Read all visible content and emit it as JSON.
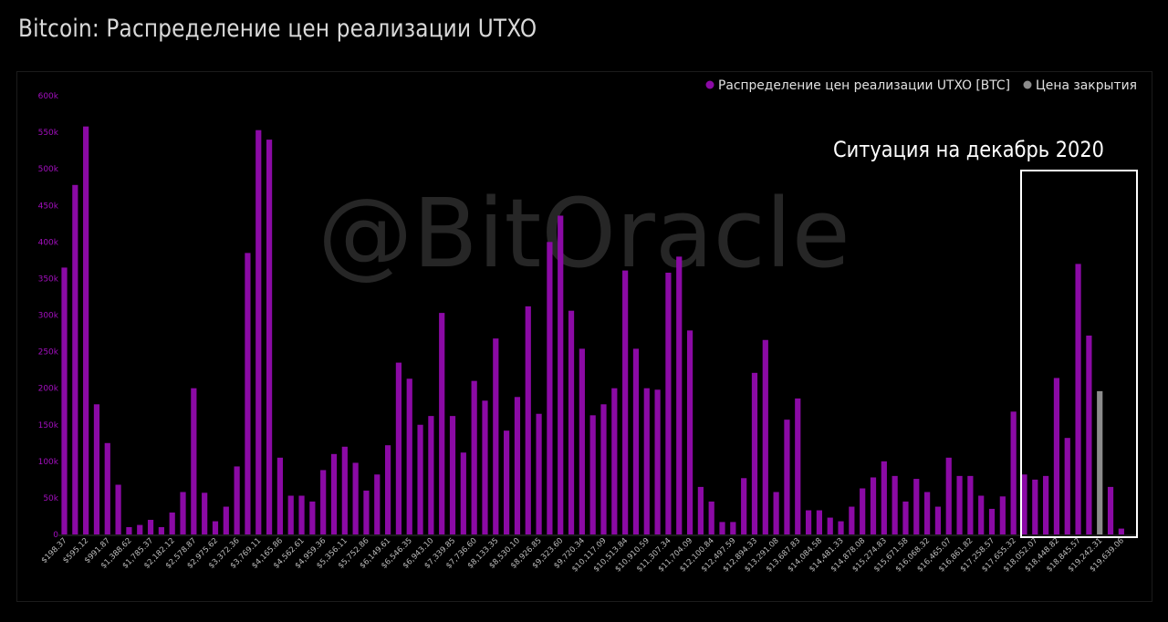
{
  "header": {
    "title": "Bitcoin: Распределение цен реализации UTXO"
  },
  "watermark": "@BitOracle",
  "legend": {
    "placement": "top-right",
    "items": [
      {
        "label": "Распределение цен реализации UTXO [BTC]",
        "color": "#8b0aa5"
      },
      {
        "label": "Цена закрытия",
        "color": "#8c8c8c"
      }
    ]
  },
  "annotation": {
    "text": "Ситуация на декабрь 2020"
  },
  "colors": {
    "bar": "#8b0aa5",
    "highlight": "#8c8c8c",
    "ytick": "#a30fbf",
    "xtick": "#bdbdbd",
    "box": "#ffffff"
  },
  "chart_data": {
    "type": "bar",
    "title": "Bitcoin: Распределение цен реализации UTXO",
    "ylim": [
      0,
      600000
    ],
    "yticks": [
      "0",
      "50k",
      "100k",
      "150k",
      "200k",
      "250k",
      "300k",
      "350k",
      "400k",
      "450k",
      "500k",
      "550k",
      "600k"
    ],
    "grid": false,
    "xtick_labels": [
      "$198.37",
      "$595.12",
      "$991.87",
      "$1,388.62",
      "$1,785.37",
      "$2,182.12",
      "$2,578.87",
      "$2,975.62",
      "$3,372.36",
      "$3,769.11",
      "$4,165.86",
      "$4,562.61",
      "$4,959.36",
      "$5,356.11",
      "$5,752.86",
      "$6,149.61",
      "$6,546.35",
      "$6,943.10",
      "$7,339.85",
      "$7,736.60",
      "$8,133.35",
      "$8,530.10",
      "$8,926.85",
      "$9,323.60",
      "$9,720.34",
      "$10,117.09",
      "$10,513.84",
      "$10,910.59",
      "$11,307.34",
      "$11,704.09",
      "$12,100.84",
      "$12,497.59",
      "$12,894.33",
      "$13,291.08",
      "$13,687.83",
      "$14,084.58",
      "$14,481.33",
      "$14,878.08",
      "$15,274.83",
      "$15,671.58",
      "$16,068.32",
      "$16,465.07",
      "$16,861.82",
      "$17,258.57",
      "$17,655.32",
      "$18,052.07",
      "$18,448.82",
      "$18,845.57",
      "$19,242.31",
      "$19,639.06"
    ],
    "series": [
      {
        "name": "Распределение цен реализации UTXO [BTC]",
        "values": [
          365000,
          478000,
          558000,
          178000,
          125000,
          68000,
          10000,
          13000,
          20000,
          10000,
          30000,
          58000,
          200000,
          57000,
          18000,
          38000,
          93000,
          385000,
          553000,
          540000,
          105000,
          53000,
          53000,
          45000,
          88000,
          110000,
          120000,
          98000,
          60000,
          82000,
          122000,
          235000,
          213000,
          150000,
          162000,
          303000,
          162000,
          112000,
          210000,
          183000,
          268000,
          142000,
          188000,
          312000,
          165000,
          400000,
          436000,
          306000,
          254000,
          163000,
          178000,
          200000,
          361000,
          254000,
          200000,
          198000,
          358000,
          380000,
          279000,
          65000,
          45000,
          17000,
          17000,
          77000,
          221000,
          266000,
          58000,
          157000,
          186000,
          33000,
          33000,
          23000,
          18000,
          38000,
          63000,
          78000,
          100000,
          80000,
          45000,
          76000,
          58000,
          38000,
          105000,
          80000,
          80000,
          53000,
          35000,
          52000,
          168000,
          82000,
          75000,
          80000,
          214000,
          132000,
          370000,
          272000,
          0,
          65000,
          8000
        ]
      },
      {
        "name": "Цена закрытия",
        "values": [
          0,
          0,
          0,
          0,
          0,
          0,
          0,
          0,
          0,
          0,
          0,
          0,
          0,
          0,
          0,
          0,
          0,
          0,
          0,
          0,
          0,
          0,
          0,
          0,
          0,
          0,
          0,
          0,
          0,
          0,
          0,
          0,
          0,
          0,
          0,
          0,
          0,
          0,
          0,
          0,
          0,
          0,
          0,
          0,
          0,
          0,
          0,
          0,
          0,
          0,
          0,
          0,
          0,
          0,
          0,
          0,
          0,
          0,
          0,
          0,
          0,
          0,
          0,
          0,
          0,
          0,
          0,
          0,
          0,
          0,
          0,
          0,
          0,
          0,
          0,
          0,
          0,
          0,
          0,
          0,
          0,
          0,
          0,
          0,
          0,
          0,
          0,
          0,
          0,
          0,
          0,
          0,
          0,
          0,
          0,
          0,
          196000,
          0,
          0
        ]
      }
    ]
  }
}
